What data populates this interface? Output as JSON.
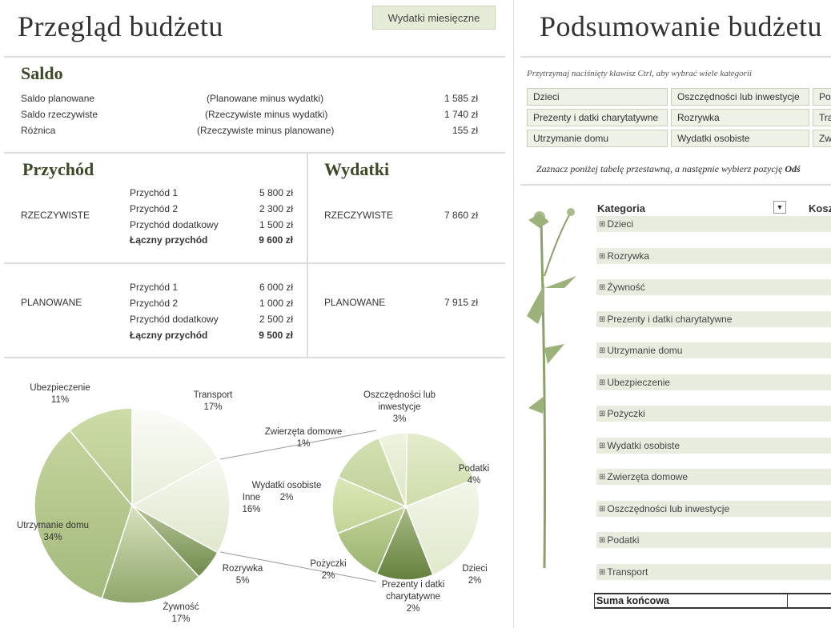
{
  "left": {
    "title": "Przegląd budżetu",
    "monthly_button": "Wydatki miesięczne",
    "saldo": {
      "heading": "Saldo",
      "rows": [
        {
          "label": "Saldo planowane",
          "note": "(Planowane minus wydatki)",
          "value": "1 585 zł"
        },
        {
          "label": "Saldo rzeczywiste",
          "note": "(Rzeczywiste minus wydatki)",
          "value": "1 740 zł"
        },
        {
          "label": "Różnica",
          "note": "(Rzeczywiste minus planowane)",
          "value": "155 zł"
        }
      ]
    },
    "income": {
      "heading": "Przychód",
      "actual_label": "RZECZYWISTE",
      "actual": [
        {
          "label": "Przychód 1",
          "value": "5 800 zł"
        },
        {
          "label": "Przychód 2",
          "value": "2 300 zł"
        },
        {
          "label": "Przychód dodatkowy",
          "value": "1 500 zł"
        },
        {
          "label": "Łączny przychód",
          "value": "9 600 zł"
        }
      ],
      "planned_label": "PLANOWANE",
      "planned": [
        {
          "label": "Przychód 1",
          "value": "6 000 zł"
        },
        {
          "label": "Przychód 2",
          "value": "1 000 zł"
        },
        {
          "label": "Przychód dodatkowy",
          "value": "2 500 zł"
        },
        {
          "label": "Łączny przychód",
          "value": "9 500 zł"
        }
      ]
    },
    "expenses": {
      "heading": "Wydatki",
      "actual_label": "RZECZYWISTE",
      "actual_value": "7 860 zł",
      "planned_label": "PLANOWANE",
      "planned_value": "7 915 zł"
    }
  },
  "chart_data": {
    "type": "pie",
    "main": {
      "slices": [
        {
          "label": "Transport",
          "value": 17
        },
        {
          "label": "Inne",
          "value": 16
        },
        {
          "label": "Rozrywka",
          "value": 5
        },
        {
          "label": "Żywność",
          "value": 17
        },
        {
          "label": "Utrzymanie domu",
          "value": 34
        },
        {
          "label": "Ubezpieczenie",
          "value": 11
        }
      ]
    },
    "secondary": {
      "slices": [
        {
          "label": "Zwierzęta domowe",
          "value": 1
        },
        {
          "label": "Oszczędności lub inwestycje",
          "value": 3
        },
        {
          "label": "Podatki",
          "value": 4
        },
        {
          "label": "Dzieci",
          "value": 2
        },
        {
          "label": "Prezenty i datki charytatywne",
          "value": 2
        },
        {
          "label": "Pożyczki",
          "value": 2
        },
        {
          "label": "Wydatki osobiste",
          "value": 2
        }
      ]
    },
    "labels": [
      {
        "lines": [
          "Ubezpieczenie",
          "11%"
        ]
      },
      {
        "lines": [
          "Transport",
          "17%"
        ]
      },
      {
        "lines": [
          "Oszczędności lub",
          "inwestycje",
          "3%"
        ]
      },
      {
        "lines": [
          "Zwierzęta domowe",
          "1%"
        ]
      },
      {
        "lines": [
          "Podatki",
          "4%"
        ]
      },
      {
        "lines": [
          "Wydatki osobiste",
          "2%"
        ]
      },
      {
        "lines": [
          "Inne",
          "16%"
        ]
      },
      {
        "lines": [
          "Utrzymanie domu",
          "34%"
        ]
      },
      {
        "lines": [
          "Rozrywka",
          "5%"
        ]
      },
      {
        "lines": [
          "Pożyczki",
          "2%"
        ]
      },
      {
        "lines": [
          "Dzieci",
          "2%"
        ]
      },
      {
        "lines": [
          "Prezenty i datki",
          "charytatywne",
          "2%"
        ]
      },
      {
        "lines": [
          "Żywność",
          "17%"
        ]
      }
    ]
  },
  "right": {
    "title": "Podsumowanie budżetu",
    "hint": "Przytrzymaj naciśnięty klawisz Ctrl, aby wybrać wiele kategorii",
    "slicers": [
      [
        "Dzieci",
        "Oszczędności lub inwestycje",
        "Po"
      ],
      [
        "Prezenty i datki charytatywne",
        "Rozrywka",
        "Tra"
      ],
      [
        "Utrzymanie domu",
        "Wydatki osobiste",
        "Zw"
      ]
    ],
    "instruction": "Zaznacz poniżej tabelę przestawną, a następnie wybierz pozycję",
    "instruction_bold": "Odś",
    "pivot": {
      "col1": "Kategoria",
      "col2": "Kosz",
      "rows": [
        "Dzieci",
        "Rozrywka",
        "Żywność",
        "Prezenty i datki charytatywne",
        "Utrzymanie domu",
        "Ubezpieczenie",
        "Pożyczki",
        "Wydatki osobiste",
        "Zwierzęta domowe",
        "Oszczędności lub inwestycje",
        "Podatki",
        "Transport"
      ],
      "total": "Suma końcowa"
    }
  },
  "colors": {
    "accent": "#3a4a24",
    "button": "#e4ebd6",
    "pivot_row": "#e8ecdf",
    "plant": "#8aa26a"
  }
}
